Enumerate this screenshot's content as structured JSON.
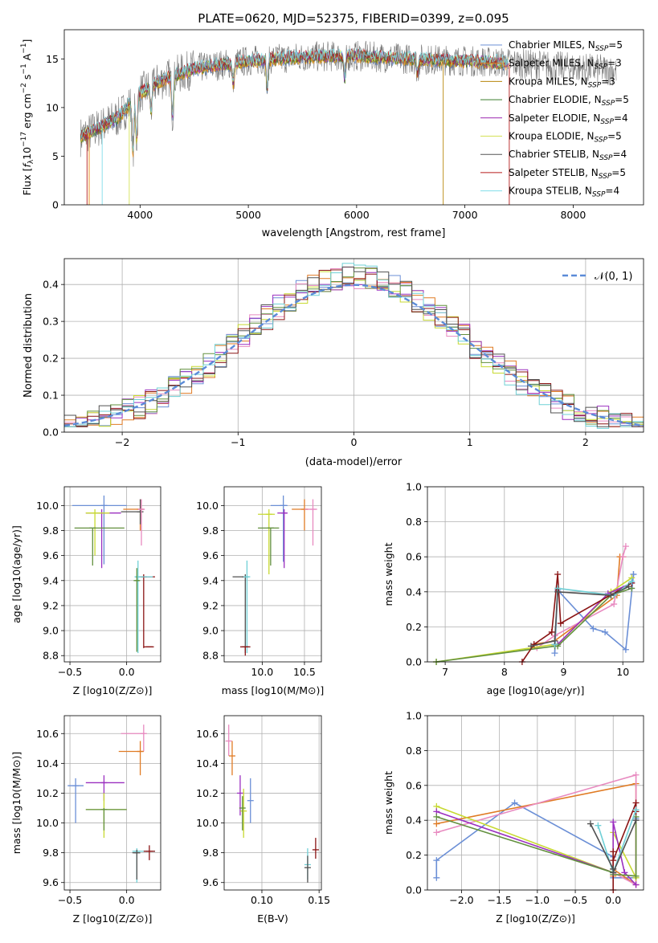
{
  "colors": {
    "cm": "#4c72b0",
    "sm": "#e8860c",
    "km": "#b8860b",
    "ce": "#3a7d2c",
    "se": "#9c27b0",
    "ke": "#d4e157",
    "cs": "#555555",
    "ss": "#b71c1c",
    "ks": "#80deea",
    "p1": "#6b8fd6",
    "p2": "#e07b24",
    "p3": "#e88ac0",
    "p4": "#c7d930",
    "p5": "#9b30c0",
    "p6": "#62903e",
    "p7": "#8a1414",
    "p8": "#6fd0d6",
    "p9": "#505050"
  },
  "chart_data": [
    {
      "id": "spectrum",
      "type": "line",
      "title": "PLATE=0620, MJD=52375, FIBERID=0399, z=0.095",
      "xlabel": "wavelength [Angstrom, rest frame]",
      "ylabel": "Flux [f_λ 10^-17 erg cm^-2 s^-1 A^-1]",
      "xlim": [
        3300,
        8650
      ],
      "ylim": [
        0,
        18
      ],
      "xticks": [
        "4000",
        "5000",
        "6000",
        "7000",
        "8000"
      ],
      "yticks": [
        "0",
        "5",
        "10",
        "15"
      ],
      "legend_position": "right",
      "legend": [
        {
          "text": "Chabrier MILES, N",
          "sub": "SSP",
          "tail": "=5"
        },
        {
          "text": "Salpeter MILES, N",
          "sub": "SSP",
          "tail": "=3"
        },
        {
          "text": "Kroupa MILES, N",
          "sub": "SSP",
          "tail": "=3"
        },
        {
          "text": "Chabrier ELODIE, N",
          "sub": "SSP",
          "tail": "=5"
        },
        {
          "text": "Salpeter ELODIE, N",
          "sub": "SSP",
          "tail": "=4"
        },
        {
          "text": "Kroupa ELODIE, N",
          "sub": "SSP",
          "tail": "=5"
        },
        {
          "text": "Chabrier STELIB, N",
          "sub": "SSP",
          "tail": "=4"
        },
        {
          "text": "Salpeter STELIB, N",
          "sub": "SSP",
          "tail": "=5"
        },
        {
          "text": "Kroupa STELIB, N",
          "sub": "SSP",
          "tail": "=4"
        }
      ],
      "continuum": {
        "x": [
          3450,
          3600,
          3800,
          4000,
          4200,
          4500,
          5000,
          5500,
          6000,
          6500,
          7000,
          7400,
          8000,
          8400
        ],
        "y": [
          7.0,
          7.8,
          9.0,
          11.5,
          12.8,
          14.0,
          14.8,
          15.2,
          15.3,
          15.0,
          14.8,
          14.6,
          14.1,
          13.8
        ]
      },
      "data_extent": [
        3450,
        8400
      ],
      "model_extent": [
        3450,
        7400
      ]
    },
    {
      "id": "residuals",
      "type": "histogram",
      "xlabel": "(data-model)/error",
      "ylabel": "Normed distribution",
      "xlim": [
        -2.5,
        2.5
      ],
      "ylim": [
        0,
        0.47
      ],
      "xticks": [
        "−2",
        "−1",
        "0",
        "1",
        "2"
      ],
      "yticks": [
        "0.0",
        "0.1",
        "0.2",
        "0.3",
        "0.4"
      ],
      "bin_width": 0.1,
      "legend_label": "𝒩(0, 1)",
      "legend_position": "top-right"
    },
    {
      "id": "age-vs-z",
      "type": "scatter",
      "xlabel": "Z [log10(Z/Z⊙)]",
      "ylabel": "age  [log10(age/yr)]",
      "xlim": [
        -0.55,
        0.3
      ],
      "ylim": [
        8.75,
        10.15
      ],
      "xticks": [
        "−0.5",
        "0.0"
      ],
      "yticks": [
        "8.8",
        "9.0",
        "9.2",
        "9.4",
        "9.6",
        "9.8",
        "10.0"
      ],
      "points": [
        {
          "x": -0.2,
          "y": 10.0,
          "xlo": -0.48,
          "xhi": 0.0,
          "ylo": 9.53,
          "yhi": 10.08,
          "c": "p1"
        },
        {
          "x": 0.12,
          "y": 9.97,
          "xlo": -0.03,
          "xhi": 0.15,
          "ylo": 9.8,
          "yhi": 10.05,
          "c": "p2"
        },
        {
          "x": 0.12,
          "y": 9.95,
          "xlo": -0.05,
          "xhi": 0.14,
          "ylo": 9.85,
          "yhi": 10.05,
          "c": "p9"
        },
        {
          "x": 0.13,
          "y": 9.97,
          "xlo": 0.1,
          "xhi": 0.16,
          "ylo": 9.68,
          "yhi": 10.05,
          "c": "p3"
        },
        {
          "x": -0.22,
          "y": 9.94,
          "xlo": -0.36,
          "xhi": -0.05,
          "ylo": 9.5,
          "yhi": 9.97,
          "c": "p5"
        },
        {
          "x": -0.28,
          "y": 9.94,
          "xlo": -0.36,
          "xhi": -0.15,
          "ylo": 9.6,
          "yhi": 9.97,
          "c": "p4"
        },
        {
          "x": -0.3,
          "y": 9.82,
          "xlo": -0.46,
          "xhi": -0.02,
          "ylo": 9.52,
          "yhi": 9.82,
          "c": "p6"
        },
        {
          "x": 0.15,
          "y": 9.43,
          "xlo": 0.08,
          "xhi": 0.25,
          "ylo": 8.86,
          "yhi": 9.45,
          "c": "p7"
        },
        {
          "x": 0.1,
          "y": 9.43,
          "xlo": 0.07,
          "xhi": 0.23,
          "ylo": 8.82,
          "yhi": 9.56,
          "c": "p8"
        },
        {
          "x": 0.09,
          "y": 9.4,
          "xlo": 0.07,
          "xhi": 0.11,
          "ylo": 8.83,
          "yhi": 9.5,
          "c": "p6"
        },
        {
          "x": 0.2,
          "y": 8.87,
          "xlo": 0.15,
          "xhi": 0.24,
          "ylo": 8.87,
          "yhi": 8.87,
          "c": "p7"
        }
      ]
    },
    {
      "id": "age-vs-mass",
      "type": "scatter",
      "xlabel": "mass [log10(M/M⊙)]",
      "ylabel": "",
      "xlim": [
        9.55,
        10.7
      ],
      "ylim": [
        8.75,
        10.15
      ],
      "xticks": [
        "10.0",
        "10.5"
      ],
      "yticks": [
        "8.8",
        "9.0",
        "9.2",
        "9.4",
        "9.6",
        "9.8",
        "10.0"
      ],
      "points": [
        {
          "x": 10.25,
          "y": 10.0,
          "xlo": 10.1,
          "xhi": 10.3,
          "ylo": 9.55,
          "yhi": 10.08,
          "c": "p1"
        },
        {
          "x": 10.5,
          "y": 9.97,
          "xlo": 10.35,
          "xhi": 10.55,
          "ylo": 9.8,
          "yhi": 10.05,
          "c": "p2"
        },
        {
          "x": 10.6,
          "y": 9.97,
          "xlo": 10.5,
          "xhi": 10.65,
          "ylo": 9.68,
          "yhi": 10.05,
          "c": "p3"
        },
        {
          "x": 10.26,
          "y": 9.94,
          "xlo": 10.18,
          "xhi": 10.3,
          "ylo": 9.5,
          "yhi": 9.97,
          "c": "p5"
        },
        {
          "x": 10.08,
          "y": 9.93,
          "xlo": 9.95,
          "xhi": 10.15,
          "ylo": 9.45,
          "yhi": 9.97,
          "c": "p4"
        },
        {
          "x": 10.1,
          "y": 9.82,
          "xlo": 9.95,
          "xhi": 10.2,
          "ylo": 9.52,
          "yhi": 9.82,
          "c": "p6"
        },
        {
          "x": 9.8,
          "y": 9.43,
          "xlo": 9.65,
          "xhi": 9.82,
          "ylo": 8.82,
          "yhi": 9.45,
          "c": "p9"
        },
        {
          "x": 9.82,
          "y": 9.43,
          "xlo": 9.78,
          "xhi": 9.84,
          "ylo": 8.82,
          "yhi": 9.56,
          "c": "p8"
        },
        {
          "x": 9.8,
          "y": 8.87,
          "xlo": 9.74,
          "xhi": 9.86,
          "ylo": 8.8,
          "yhi": 8.87,
          "c": "p7"
        }
      ]
    },
    {
      "id": "weight-vs-age",
      "type": "line",
      "xlabel": "age  [log10(age/yr)]",
      "ylabel": "mass weight",
      "xlim": [
        6.7,
        10.35
      ],
      "ylim": [
        0,
        1.0
      ],
      "xticks": [
        "7",
        "8",
        "9",
        "10"
      ],
      "yticks": [
        "0.0",
        "0.2",
        "0.4",
        "0.6",
        "0.8",
        "1.0"
      ],
      "series": [
        {
          "c": "p1",
          "x": [
            8.85,
            8.9,
            9.5,
            9.7,
            10.05,
            10.18,
            10.18
          ],
          "y": [
            0.05,
            0.41,
            0.19,
            0.17,
            0.07,
            0.5,
            0.5
          ]
        },
        {
          "c": "p2",
          "x": [
            8.5,
            8.85,
            9.9,
            9.95,
            10.0,
            10.0
          ],
          "y": [
            0.1,
            0.12,
            0.38,
            0.6,
            0.6,
            0.6
          ]
        },
        {
          "c": "p3",
          "x": [
            8.55,
            8.85,
            9.85,
            10.0,
            10.05
          ],
          "y": [
            0.08,
            0.15,
            0.33,
            0.6,
            0.66
          ]
        },
        {
          "c": "p4",
          "x": [
            6.85,
            8.85,
            8.9,
            9.8,
            10.15
          ],
          "y": [
            0.0,
            0.1,
            0.1,
            0.4,
            0.48
          ]
        },
        {
          "c": "p5",
          "x": [
            8.85,
            8.9,
            9.75,
            10.15
          ],
          "y": [
            0.1,
            0.1,
            0.39,
            0.45
          ]
        },
        {
          "c": "p6",
          "x": [
            6.85,
            8.85,
            8.9,
            9.8,
            10.15
          ],
          "y": [
            0.0,
            0.09,
            0.09,
            0.38,
            0.42
          ]
        },
        {
          "c": "p7",
          "x": [
            8.3,
            8.5,
            8.8,
            8.9,
            8.95,
            10.15
          ],
          "y": [
            0.0,
            0.1,
            0.17,
            0.5,
            0.22,
            0.45
          ]
        },
        {
          "c": "p8",
          "x": [
            8.85,
            8.9,
            9.85,
            10.15
          ],
          "y": [
            0.1,
            0.42,
            0.38,
            0.46
          ]
        },
        {
          "c": "p9",
          "x": [
            8.45,
            8.85,
            8.9,
            9.8,
            10.1
          ],
          "y": [
            0.09,
            0.12,
            0.4,
            0.38,
            0.43
          ]
        }
      ]
    },
    {
      "id": "mass-vs-z",
      "type": "scatter",
      "xlabel": "Z [log10(Z/Z⊙)]",
      "ylabel": "mass [log10(M/M⊙)]",
      "xlim": [
        -0.55,
        0.3
      ],
      "ylim": [
        9.55,
        10.72
      ],
      "xticks": [
        "−0.5",
        "0.0"
      ],
      "yticks": [
        "9.6",
        "9.8",
        "10.0",
        "10.2",
        "10.4",
        "10.6"
      ],
      "points": [
        {
          "x": -0.45,
          "y": 10.25,
          "xlo": -0.52,
          "xhi": -0.38,
          "ylo": 10.0,
          "yhi": 10.3,
          "c": "p1"
        },
        {
          "x": 0.15,
          "y": 10.6,
          "xlo": -0.05,
          "xhi": 0.16,
          "ylo": 10.48,
          "yhi": 10.66,
          "c": "p3"
        },
        {
          "x": 0.12,
          "y": 10.48,
          "xlo": -0.07,
          "xhi": 0.15,
          "ylo": 10.32,
          "yhi": 10.55,
          "c": "p2"
        },
        {
          "x": -0.2,
          "y": 10.27,
          "xlo": -0.36,
          "xhi": -0.02,
          "ylo": 10.15,
          "yhi": 10.32,
          "c": "p5"
        },
        {
          "x": -0.2,
          "y": 10.09,
          "xlo": -0.36,
          "xhi": 0.0,
          "ylo": 9.9,
          "yhi": 10.2,
          "c": "p4"
        },
        {
          "x": -0.2,
          "y": 10.09,
          "xlo": -0.36,
          "xhi": 0.0,
          "ylo": 9.95,
          "yhi": 10.1,
          "c": "p6"
        },
        {
          "x": 0.09,
          "y": 9.81,
          "xlo": 0.05,
          "xhi": 0.25,
          "ylo": 9.6,
          "yhi": 9.83,
          "c": "p8"
        },
        {
          "x": 0.2,
          "y": 9.81,
          "xlo": 0.15,
          "xhi": 0.25,
          "ylo": 9.75,
          "yhi": 9.85,
          "c": "p7"
        },
        {
          "x": 0.09,
          "y": 9.8,
          "xlo": 0.05,
          "xhi": 0.12,
          "ylo": 9.62,
          "yhi": 9.82,
          "c": "p9"
        }
      ]
    },
    {
      "id": "mass-vs-ebv",
      "type": "scatter",
      "xlabel": "E(B-V)",
      "ylabel": "",
      "xlim": [
        0.067,
        0.152
      ],
      "ylim": [
        9.55,
        10.72
      ],
      "xticks": [
        "0.10",
        "0.15"
      ],
      "yticks": [
        "9.6",
        "9.8",
        "10.0",
        "10.2",
        "10.4",
        "10.6"
      ],
      "points": [
        {
          "x": 0.071,
          "y": 10.55,
          "xlo": 0.071,
          "xhi": 0.071,
          "ylo": 10.45,
          "yhi": 10.66,
          "c": "p3"
        },
        {
          "x": 0.074,
          "y": 10.45,
          "xlo": 0.074,
          "xhi": 0.074,
          "ylo": 10.32,
          "yhi": 10.55,
          "c": "p2"
        },
        {
          "x": 0.09,
          "y": 10.15,
          "xlo": 0.09,
          "xhi": 0.09,
          "ylo": 10.0,
          "yhi": 10.3,
          "c": "p1"
        },
        {
          "x": 0.081,
          "y": 10.2,
          "xlo": 0.081,
          "xhi": 0.081,
          "ylo": 10.05,
          "yhi": 10.32,
          "c": "p5"
        },
        {
          "x": 0.084,
          "y": 10.08,
          "xlo": 0.084,
          "xhi": 0.084,
          "ylo": 9.9,
          "yhi": 10.23,
          "c": "p4"
        },
        {
          "x": 0.083,
          "y": 10.1,
          "xlo": 0.083,
          "xhi": 0.083,
          "ylo": 9.95,
          "yhi": 10.18,
          "c": "p6"
        },
        {
          "x": 0.14,
          "y": 9.72,
          "xlo": 0.14,
          "xhi": 0.14,
          "ylo": 9.62,
          "yhi": 9.83,
          "c": "p8"
        },
        {
          "x": 0.147,
          "y": 9.82,
          "xlo": 0.147,
          "xhi": 0.147,
          "ylo": 9.76,
          "yhi": 9.9,
          "c": "p7"
        },
        {
          "x": 0.14,
          "y": 9.7,
          "xlo": 0.14,
          "xhi": 0.14,
          "ylo": 9.6,
          "yhi": 9.78,
          "c": "p9"
        }
      ]
    },
    {
      "id": "weight-vs-z",
      "type": "line",
      "xlabel": "Z [log10(Z/Z⊙)]",
      "ylabel": "mass weight",
      "xlim": [
        -2.45,
        0.4
      ],
      "ylim": [
        0,
        1.0
      ],
      "xticks": [
        "−2.0",
        "−1.5",
        "−1.0",
        "−0.5",
        "0.0"
      ],
      "yticks": [
        "0.0",
        "0.2",
        "0.4",
        "0.6",
        "0.8",
        "1.0"
      ],
      "series": [
        {
          "c": "p1",
          "x": [
            -2.33,
            -2.33,
            -1.3,
            0.0,
            0.0,
            0.3,
            0.3
          ],
          "y": [
            0.07,
            0.17,
            0.5,
            0.19,
            0.07,
            0.07,
            0.41
          ]
        },
        {
          "c": "p2",
          "x": [
            -2.33,
            0.3,
            0.3,
            0.0,
            0.0
          ],
          "y": [
            0.38,
            0.61,
            0.03,
            0.12,
            0.08
          ]
        },
        {
          "c": "p3",
          "x": [
            -2.33,
            0.3,
            0.3,
            0.0
          ],
          "y": [
            0.33,
            0.66,
            0.03,
            0.1
          ]
        },
        {
          "c": "p4",
          "x": [
            -2.33,
            0.0,
            0.0,
            0.3,
            0.3
          ],
          "y": [
            0.48,
            0.1,
            0.33,
            0.07,
            0.08
          ]
        },
        {
          "c": "p5",
          "x": [
            -2.33,
            0.0,
            0.0,
            0.15,
            0.3
          ],
          "y": [
            0.45,
            0.1,
            0.39,
            0.1,
            0.03
          ]
        },
        {
          "c": "p6",
          "x": [
            -2.33,
            0.0,
            0.0,
            0.3,
            0.3
          ],
          "y": [
            0.42,
            0.1,
            0.09,
            0.08,
            0.42
          ]
        },
        {
          "c": "p7",
          "x": [
            0.0,
            0.0,
            0.0,
            0.3,
            0.3
          ],
          "y": [
            0.0,
            0.22,
            0.17,
            0.5,
            0.45
          ]
        },
        {
          "c": "p8",
          "x": [
            -0.2,
            0.0,
            0.0,
            0.3
          ],
          "y": [
            0.37,
            0.1,
            0.1,
            0.46
          ]
        },
        {
          "c": "p9",
          "x": [
            -0.3,
            0.0,
            0.0,
            0.3
          ],
          "y": [
            0.38,
            0.12,
            0.1,
            0.4
          ]
        }
      ]
    }
  ]
}
